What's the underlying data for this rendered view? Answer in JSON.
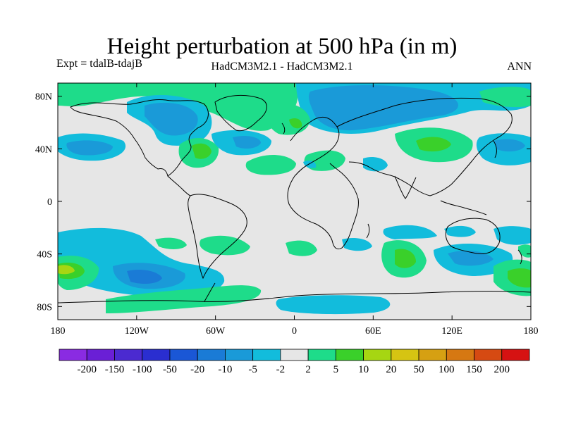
{
  "title": "Height perturbation at 500 hPa (in m)",
  "experiment_label": "Expt = tdalB-tdajB",
  "model_label": "HadCM3M2.1 - HadCM3M2.1",
  "season_label": "ANN",
  "map": {
    "lon_ticks": [
      "180",
      "120W",
      "60W",
      "0",
      "60E",
      "120E",
      "180"
    ],
    "lat_ticks": [
      "80N",
      "40N",
      "0",
      "40S",
      "80S"
    ],
    "land_color": "#e6e6e6",
    "coast_color": "#000000"
  },
  "colorbar": {
    "labels": [
      "-200",
      "-150",
      "-100",
      "-50",
      "-20",
      "-10",
      "-5",
      "-2",
      "2",
      "5",
      "10",
      "20",
      "50",
      "100",
      "150",
      "200"
    ],
    "colors": [
      "#8a2be2",
      "#6a1fd6",
      "#4b2ad0",
      "#2a2ed0",
      "#1a57d6",
      "#1a7bd6",
      "#1a9ad8",
      "#12bcdc",
      "#e6e6e6",
      "#1edc8a",
      "#3ad02a",
      "#a6d612",
      "#d6c412",
      "#d6a012",
      "#d67812",
      "#d64a12",
      "#d61212"
    ]
  }
}
